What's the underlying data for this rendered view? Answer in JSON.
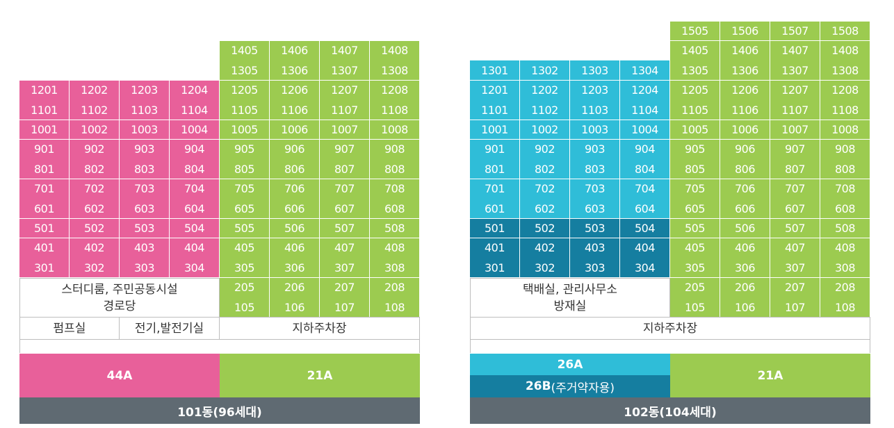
{
  "building101": {
    "pink_rows": [
      [
        "1201",
        "1202",
        "1203",
        "1204"
      ],
      [
        "1101",
        "1102",
        "1103",
        "1104"
      ],
      [
        "1001",
        "1002",
        "1003",
        "1004"
      ],
      [
        "901",
        "902",
        "903",
        "904"
      ],
      [
        "801",
        "802",
        "803",
        "804"
      ],
      [
        "701",
        "702",
        "703",
        "704"
      ],
      [
        "601",
        "602",
        "603",
        "604"
      ],
      [
        "501",
        "502",
        "503",
        "504"
      ],
      [
        "401",
        "402",
        "403",
        "404"
      ],
      [
        "301",
        "302",
        "303",
        "304"
      ]
    ],
    "green_rows": [
      [
        "1405",
        "1406",
        "1407",
        "1408"
      ],
      [
        "1305",
        "1306",
        "1307",
        "1308"
      ],
      [
        "1205",
        "1206",
        "1207",
        "1208"
      ],
      [
        "1105",
        "1106",
        "1107",
        "1108"
      ],
      [
        "1005",
        "1006",
        "1007",
        "1008"
      ],
      [
        "905",
        "906",
        "907",
        "908"
      ],
      [
        "805",
        "806",
        "807",
        "808"
      ],
      [
        "705",
        "706",
        "707",
        "708"
      ],
      [
        "605",
        "606",
        "607",
        "608"
      ],
      [
        "505",
        "506",
        "507",
        "508"
      ],
      [
        "405",
        "406",
        "407",
        "408"
      ],
      [
        "305",
        "306",
        "307",
        "308"
      ],
      [
        "205",
        "206",
        "207",
        "208"
      ],
      [
        "105",
        "106",
        "107",
        "108"
      ]
    ],
    "facility_line1": "스터디룸, 주민공동시설",
    "facility_line2": "경로당",
    "pump_room": "펌프실",
    "electric_room": "전기,발전기실",
    "parking": "지하주차장",
    "type_pink": "44A",
    "type_green": "21A",
    "title": "101동(96세대)"
  },
  "building102": {
    "cyan_rows": [
      [
        "1301",
        "1302",
        "1303",
        "1304"
      ],
      [
        "1201",
        "1202",
        "1203",
        "1204"
      ],
      [
        "1101",
        "1102",
        "1103",
        "1104"
      ],
      [
        "1001",
        "1002",
        "1003",
        "1004"
      ],
      [
        "901",
        "902",
        "903",
        "904"
      ],
      [
        "801",
        "802",
        "803",
        "804"
      ],
      [
        "701",
        "702",
        "703",
        "704"
      ],
      [
        "601",
        "602",
        "603",
        "604"
      ]
    ],
    "navy_rows": [
      [
        "501",
        "502",
        "503",
        "504"
      ],
      [
        "401",
        "402",
        "403",
        "404"
      ],
      [
        "301",
        "302",
        "303",
        "304"
      ]
    ],
    "green_rows": [
      [
        "1505",
        "1506",
        "1507",
        "1508"
      ],
      [
        "1405",
        "1406",
        "1407",
        "1408"
      ],
      [
        "1305",
        "1306",
        "1307",
        "1308"
      ],
      [
        "1205",
        "1206",
        "1207",
        "1208"
      ],
      [
        "1105",
        "1106",
        "1107",
        "1108"
      ],
      [
        "1005",
        "1006",
        "1007",
        "1008"
      ],
      [
        "905",
        "906",
        "907",
        "908"
      ],
      [
        "805",
        "806",
        "807",
        "808"
      ],
      [
        "705",
        "706",
        "707",
        "708"
      ],
      [
        "605",
        "606",
        "607",
        "608"
      ],
      [
        "505",
        "506",
        "507",
        "508"
      ],
      [
        "405",
        "406",
        "407",
        "408"
      ],
      [
        "305",
        "306",
        "307",
        "308"
      ],
      [
        "205",
        "206",
        "207",
        "208"
      ],
      [
        "105",
        "106",
        "107",
        "108"
      ]
    ],
    "facility_line1": "택배실, 관리사무소",
    "facility_line2": "방재실",
    "parking": "지하주차장",
    "type_cyan": "26A",
    "type_navy_main": "26B",
    "type_navy_note": "(주거약자용)",
    "type_green": "21A",
    "title": "102동(104세대)"
  },
  "colors": {
    "pink": "#e8609a",
    "green": "#9ccb50",
    "cyan": "#2fbdd8",
    "navy": "#157ea0",
    "gray": "#5f6a72"
  }
}
